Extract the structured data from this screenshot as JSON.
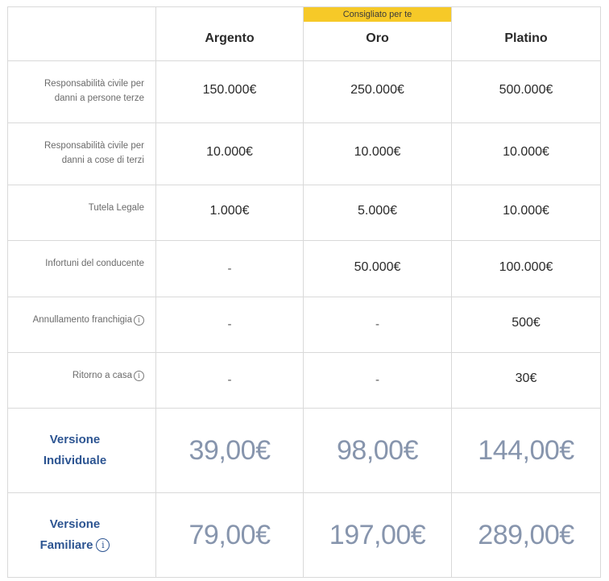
{
  "header": {
    "badge": "Consigliato per te",
    "plans": [
      "Argento",
      "Oro",
      "Platino"
    ]
  },
  "rows": [
    {
      "label_l1": "Responsabilità civile per",
      "label_l2": "danni a persone terze",
      "values": [
        "150.000€",
        "250.000€",
        "500.000€"
      ]
    },
    {
      "label_l1": "Responsabilità civile per",
      "label_l2": "danni a cose di terzi",
      "values": [
        "10.000€",
        "10.000€",
        "10.000€"
      ]
    },
    {
      "label_l1": "Tutela Legale",
      "values": [
        "1.000€",
        "5.000€",
        "10.000€"
      ]
    },
    {
      "label_l1": "Infortuni del conducente",
      "values": [
        "-",
        "50.000€",
        "100.000€"
      ]
    },
    {
      "label_l1": "Annullamento franchigia",
      "info": "i",
      "values": [
        "-",
        "-",
        "500€"
      ]
    },
    {
      "label_l1": "Ritorno a casa",
      "info": "i",
      "values": [
        "-",
        "-",
        "30€"
      ]
    }
  ],
  "prices": [
    {
      "label_l1": "Versione",
      "label_l2": "Individuale",
      "values": [
        "39,00€",
        "98,00€",
        "144,00€"
      ]
    },
    {
      "label_l1": "Versione",
      "label_l2": "Familiare",
      "info": "i",
      "values": [
        "79,00€",
        "197,00€",
        "289,00€"
      ]
    }
  ],
  "colors": {
    "badge": "#f6c928",
    "price_label": "#2d5592",
    "price_value": "#8795ad",
    "border": "#d9d9d9"
  }
}
